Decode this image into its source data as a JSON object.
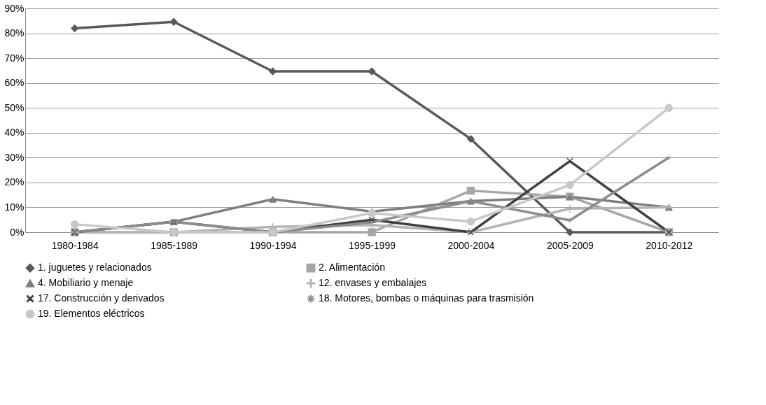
{
  "chart_data": {
    "type": "line",
    "categories": [
      "1980-1984",
      "1985-1989",
      "1990-1994",
      "1995-1999",
      "2000-2004",
      "2005-2009",
      "2010-2012"
    ],
    "series": [
      {
        "name": "1. juguetes y relacionados",
        "color": "#595959",
        "marker": "diamond",
        "values": [
          82,
          84.6,
          64.7,
          64.7,
          37.5,
          0,
          0
        ]
      },
      {
        "name": "2.  Alimentación",
        "color": "#a6a6a6",
        "marker": "square",
        "values": [
          0,
          0,
          0,
          0,
          16.7,
          14.3,
          0
        ]
      },
      {
        "name": "4. Mobiliario y menaje",
        "color": "#7f7f7f",
        "marker": "triangle",
        "values": [
          0,
          4.2,
          13.3,
          8.3,
          12.5,
          14.3,
          10
        ]
      },
      {
        "name": "12. envases y embalajes",
        "color": "#b4b4b4",
        "marker": "plus",
        "values": [
          0,
          0,
          2.2,
          2.9,
          0,
          9.5,
          10
        ]
      },
      {
        "name": "17. Construcción y derivados",
        "color": "#404040",
        "marker": "cross",
        "values": [
          0,
          4.2,
          0,
          5.0,
          0,
          28.6,
          0
        ]
      },
      {
        "name": "18. Motores, bombas o máquinas para trasmisión",
        "color": "#8c8c8c",
        "marker": "star",
        "values": [
          0,
          4.2,
          0,
          4.0,
          12.5,
          4.8,
          30
        ]
      },
      {
        "name": "19. Elementos eléctricos",
        "color": "#c8c8c8",
        "marker": "circle",
        "values": [
          3.2,
          0,
          0,
          7.7,
          4.3,
          19,
          50
        ]
      }
    ],
    "ylim": [
      0,
      90
    ],
    "yticks": [
      {
        "value": 0,
        "label": "0%"
      },
      {
        "value": 10,
        "label": "10%"
      },
      {
        "value": 20,
        "label": "20%"
      },
      {
        "value": 30,
        "label": "30%"
      },
      {
        "value": 40,
        "label": "40%"
      },
      {
        "value": 50,
        "label": "50%"
      },
      {
        "value": 60,
        "label": "60%"
      },
      {
        "value": 70,
        "label": "70%"
      },
      {
        "value": 80,
        "label": "80%"
      },
      {
        "value": 90,
        "label": "90%"
      }
    ],
    "grid": "y",
    "legend": "bottom",
    "line_style": "solid"
  }
}
